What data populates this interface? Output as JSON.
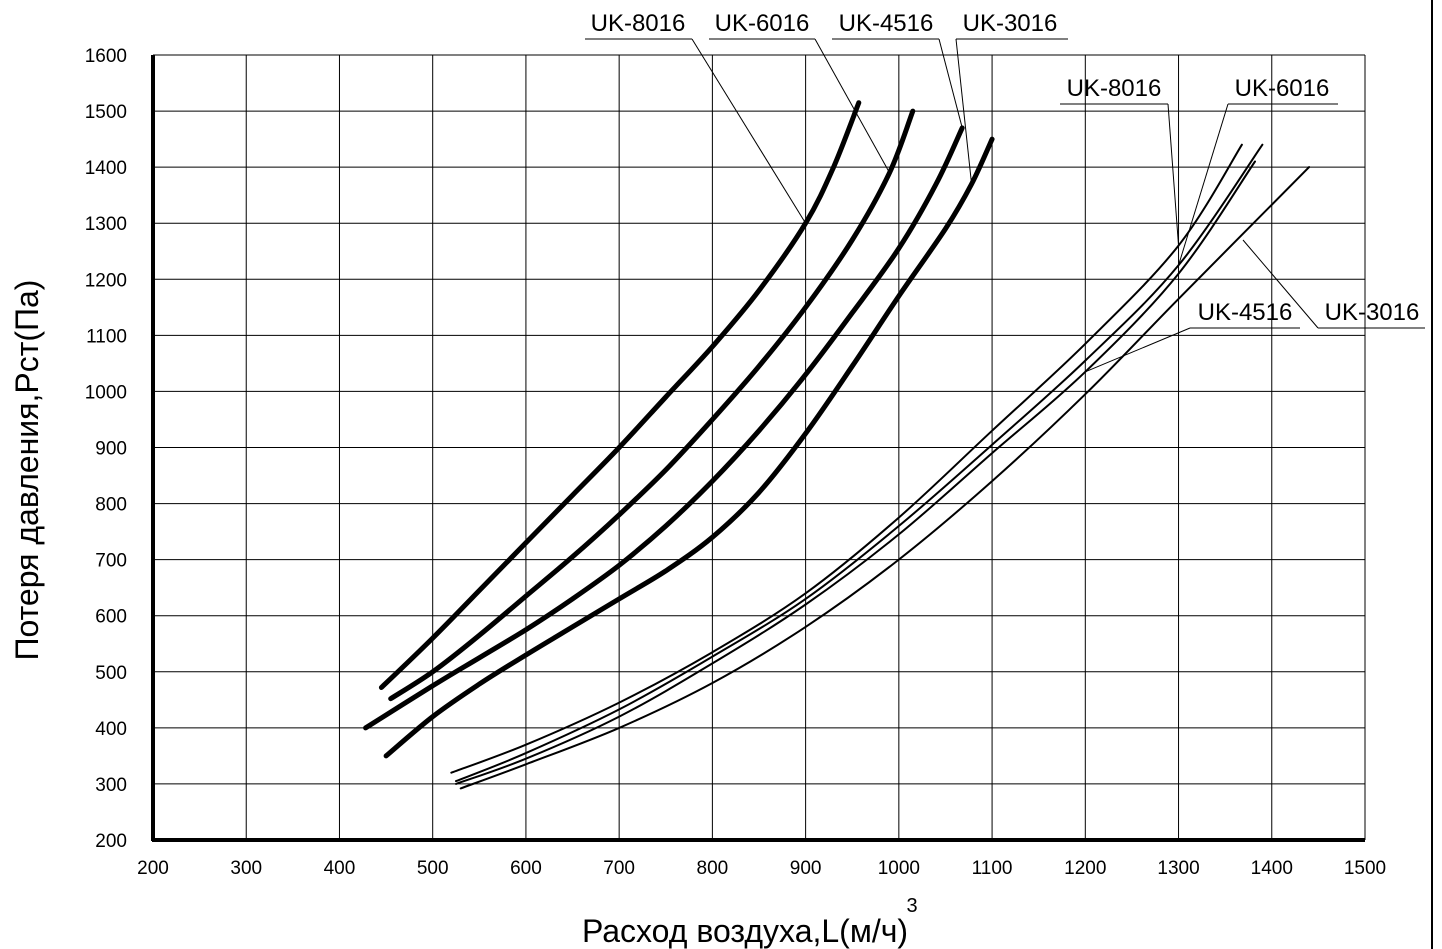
{
  "chart_data": {
    "type": "line",
    "title": "",
    "xlabel": "Расход воздуха,L(м/ч)",
    "xlabel_superscript": "3",
    "ylabel": "Потеря давления,Pст(Па)",
    "xlim": [
      200,
      1500
    ],
    "ylim": [
      200,
      1600
    ],
    "x_ticks": [
      "200",
      "300",
      "400",
      "500",
      "600",
      "700",
      "800",
      "900",
      "1000",
      "1100",
      "1200",
      "1300",
      "1400",
      "1500"
    ],
    "y_ticks": [
      "200",
      "300",
      "400",
      "500",
      "600",
      "700",
      "800",
      "900",
      "1000",
      "1100",
      "1200",
      "1300",
      "1400",
      "1500",
      "1600"
    ],
    "grid": true,
    "series": [
      {
        "name": "UK-8016",
        "group": "bold",
        "points": [
          [
            445,
            472
          ],
          [
            500,
            560
          ],
          [
            550,
            645
          ],
          [
            600,
            730
          ],
          [
            650,
            815
          ],
          [
            700,
            900
          ],
          [
            750,
            990
          ],
          [
            800,
            1080
          ],
          [
            850,
            1180
          ],
          [
            900,
            1300
          ],
          [
            930,
            1400
          ],
          [
            957,
            1515
          ]
        ]
      },
      {
        "name": "UK-6016",
        "group": "bold",
        "points": [
          [
            455,
            452
          ],
          [
            500,
            500
          ],
          [
            550,
            565
          ],
          [
            600,
            635
          ],
          [
            650,
            705
          ],
          [
            700,
            780
          ],
          [
            750,
            860
          ],
          [
            800,
            950
          ],
          [
            850,
            1045
          ],
          [
            900,
            1150
          ],
          [
            950,
            1270
          ],
          [
            990,
            1390
          ],
          [
            1015,
            1500
          ]
        ]
      },
      {
        "name": "UK-4516",
        "group": "bold",
        "points": [
          [
            428,
            400
          ],
          [
            500,
            475
          ],
          [
            550,
            525
          ],
          [
            600,
            575
          ],
          [
            650,
            630
          ],
          [
            700,
            690
          ],
          [
            750,
            760
          ],
          [
            800,
            840
          ],
          [
            850,
            930
          ],
          [
            900,
            1030
          ],
          [
            950,
            1140
          ],
          [
            1000,
            1255
          ],
          [
            1040,
            1370
          ],
          [
            1068,
            1470
          ]
        ]
      },
      {
        "name": "UK-3016",
        "group": "bold",
        "points": [
          [
            450,
            350
          ],
          [
            500,
            420
          ],
          [
            550,
            478
          ],
          [
            600,
            530
          ],
          [
            650,
            580
          ],
          [
            700,
            630
          ],
          [
            750,
            680
          ],
          [
            800,
            740
          ],
          [
            850,
            820
          ],
          [
            900,
            925
          ],
          [
            950,
            1045
          ],
          [
            1000,
            1170
          ],
          [
            1050,
            1290
          ],
          [
            1078,
            1370
          ],
          [
            1100,
            1450
          ]
        ]
      },
      {
        "name": "UK-8016",
        "group": "thin",
        "points": [
          [
            520,
            320
          ],
          [
            600,
            370
          ],
          [
            700,
            445
          ],
          [
            800,
            535
          ],
          [
            900,
            640
          ],
          [
            1000,
            775
          ],
          [
            1100,
            930
          ],
          [
            1200,
            1085
          ],
          [
            1300,
            1260
          ],
          [
            1368,
            1440
          ]
        ]
      },
      {
        "name": "UK-6016",
        "group": "thin",
        "points": [
          [
            525,
            305
          ],
          [
            600,
            355
          ],
          [
            700,
            433
          ],
          [
            800,
            527
          ],
          [
            900,
            630
          ],
          [
            1000,
            760
          ],
          [
            1100,
            905
          ],
          [
            1200,
            1055
          ],
          [
            1300,
            1225
          ],
          [
            1390,
            1440
          ]
        ]
      },
      {
        "name": "UK-4516",
        "group": "thin",
        "points": [
          [
            525,
            300
          ],
          [
            600,
            345
          ],
          [
            700,
            420
          ],
          [
            800,
            515
          ],
          [
            900,
            620
          ],
          [
            1000,
            745
          ],
          [
            1100,
            890
          ],
          [
            1200,
            1035
          ],
          [
            1300,
            1210
          ],
          [
            1382,
            1410
          ]
        ]
      },
      {
        "name": "UK-3016",
        "group": "thin",
        "points": [
          [
            530,
            292
          ],
          [
            600,
            335
          ],
          [
            700,
            400
          ],
          [
            800,
            480
          ],
          [
            900,
            580
          ],
          [
            1000,
            700
          ],
          [
            1100,
            840
          ],
          [
            1200,
            995
          ],
          [
            1300,
            1165
          ],
          [
            1440,
            1400
          ]
        ]
      }
    ],
    "callouts": {
      "top": [
        "UK-8016",
        "UK-6016",
        "UK-4516",
        "UK-3016"
      ],
      "right_top": [
        "UK-8016",
        "UK-6016"
      ],
      "right_bottom": [
        "UK-4516",
        "UK-3016"
      ]
    }
  },
  "colors": {
    "line": "#000000",
    "grid": "#000000",
    "background": "#ffffff"
  }
}
